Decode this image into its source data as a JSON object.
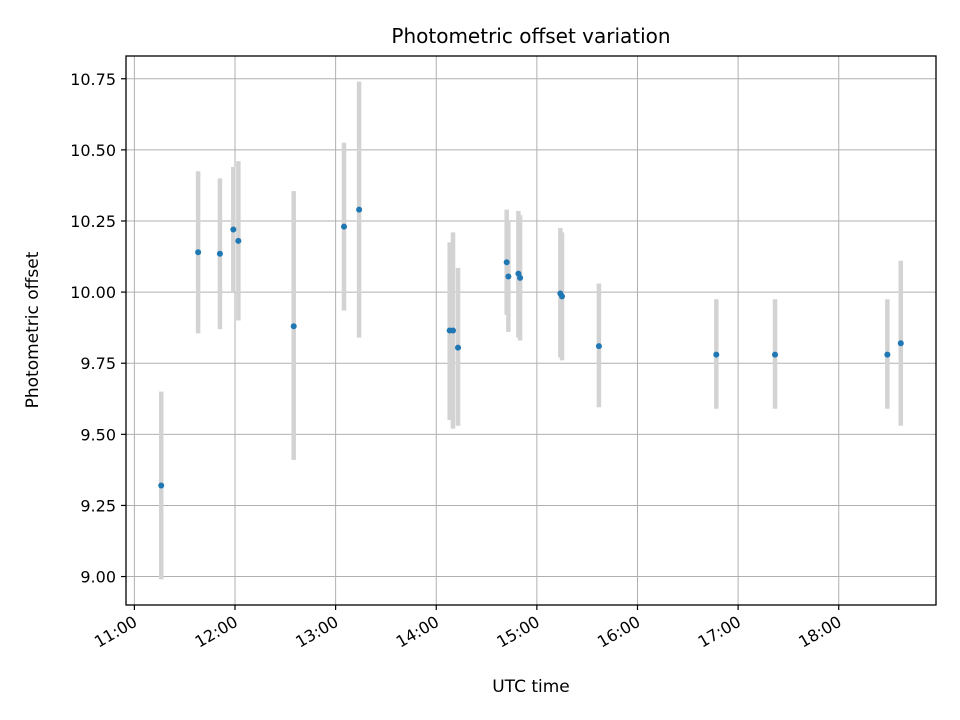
{
  "chart_data": {
    "type": "scatter",
    "title": "Photometric offset variation",
    "xlabel": "UTC time",
    "ylabel": "Photometric offset",
    "x_unit": "UTC time of day",
    "xlim": [
      "10:55",
      "18:58"
    ],
    "ylim": [
      8.9,
      10.83
    ],
    "x_ticks": [
      "11:00",
      "12:00",
      "13:00",
      "14:00",
      "15:00",
      "16:00",
      "17:00",
      "18:00"
    ],
    "y_ticks": [
      9.0,
      9.25,
      9.5,
      9.75,
      10.0,
      10.25,
      10.5,
      10.75
    ],
    "y_tick_labels": [
      "9.00",
      "9.25",
      "9.50",
      "9.75",
      "10.00",
      "10.25",
      "10.50",
      "10.75"
    ],
    "grid": true,
    "marker_color": "#1f77b4",
    "errorbar_color": "#d3d3d3",
    "points": [
      {
        "time": "11:16",
        "y": 9.32,
        "ylow": 8.99,
        "yhigh": 9.65
      },
      {
        "time": "11:38",
        "y": 10.14,
        "ylow": 9.855,
        "yhigh": 10.425
      },
      {
        "time": "11:51",
        "y": 10.135,
        "ylow": 9.87,
        "yhigh": 10.4
      },
      {
        "time": "11:59",
        "y": 10.22,
        "ylow": 10.0,
        "yhigh": 10.44
      },
      {
        "time": "12:02",
        "y": 10.18,
        "ylow": 9.9,
        "yhigh": 10.46
      },
      {
        "time": "12:35",
        "y": 9.88,
        "ylow": 9.41,
        "yhigh": 10.355
      },
      {
        "time": "13:05",
        "y": 10.23,
        "ylow": 9.935,
        "yhigh": 10.525
      },
      {
        "time": "13:14",
        "y": 10.29,
        "ylow": 9.84,
        "yhigh": 10.74
      },
      {
        "time": "14:08",
        "y": 9.865,
        "ylow": 9.55,
        "yhigh": 10.175
      },
      {
        "time": "14:10",
        "y": 9.865,
        "ylow": 9.52,
        "yhigh": 10.21
      },
      {
        "time": "14:13",
        "y": 9.805,
        "ylow": 9.53,
        "yhigh": 10.085
      },
      {
        "time": "14:42",
        "y": 10.105,
        "ylow": 9.92,
        "yhigh": 10.29
      },
      {
        "time": "14:43",
        "y": 10.055,
        "ylow": 9.86,
        "yhigh": 10.25
      },
      {
        "time": "14:49",
        "y": 10.065,
        "ylow": 9.84,
        "yhigh": 10.285
      },
      {
        "time": "14:50",
        "y": 10.05,
        "ylow": 9.83,
        "yhigh": 10.27
      },
      {
        "time": "15:14",
        "y": 9.995,
        "ylow": 9.77,
        "yhigh": 10.225
      },
      {
        "time": "15:15",
        "y": 9.985,
        "ylow": 9.76,
        "yhigh": 10.21
      },
      {
        "time": "15:37",
        "y": 9.81,
        "ylow": 9.595,
        "yhigh": 10.03
      },
      {
        "time": "16:47",
        "y": 9.78,
        "ylow": 9.59,
        "yhigh": 9.975
      },
      {
        "time": "17:22",
        "y": 9.78,
        "ylow": 9.59,
        "yhigh": 9.975
      },
      {
        "time": "18:29",
        "y": 9.78,
        "ylow": 9.59,
        "yhigh": 9.975
      },
      {
        "time": "18:37",
        "y": 9.82,
        "ylow": 9.53,
        "yhigh": 10.11
      }
    ]
  }
}
